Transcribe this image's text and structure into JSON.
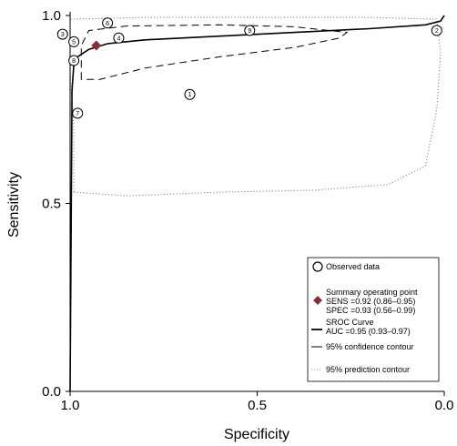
{
  "chart_data": {
    "type": "scatter",
    "xlabel": "Specificity",
    "ylabel": "Sensitivity",
    "xlim": [
      1.0,
      0.0
    ],
    "ylim": [
      0.0,
      1.0
    ],
    "x_ticks": [
      "1.0",
      "0.5",
      "0.0"
    ],
    "y_ticks": [
      "0.0",
      "0.5",
      "1.0"
    ],
    "grid": false,
    "legend_placement": "bottom-right",
    "observed_data": [
      {
        "label": "1",
        "specificity": 0.68,
        "sensitivity": 0.79
      },
      {
        "label": "2",
        "specificity": 0.02,
        "sensitivity": 0.96
      },
      {
        "label": "3",
        "specificity": 1.02,
        "sensitivity": 0.95
      },
      {
        "label": "4",
        "specificity": 0.87,
        "sensitivity": 0.94
      },
      {
        "label": "5",
        "specificity": 0.99,
        "sensitivity": 0.93
      },
      {
        "label": "6",
        "specificity": 0.9,
        "sensitivity": 0.98
      },
      {
        "label": "7",
        "specificity": 0.98,
        "sensitivity": 0.74
      },
      {
        "label": "8",
        "specificity": 0.99,
        "sensitivity": 0.88
      },
      {
        "label": "9",
        "specificity": 0.52,
        "sensitivity": 0.96
      }
    ],
    "summary_point": {
      "specificity": 0.93,
      "sensitivity": 0.92
    },
    "sroc_curve": [
      {
        "specificity": 1.0,
        "sensitivity": 0.0
      },
      {
        "specificity": 0.995,
        "sensitivity": 0.8
      },
      {
        "specificity": 0.99,
        "sensitivity": 0.87
      },
      {
        "specificity": 0.98,
        "sensitivity": 0.89
      },
      {
        "specificity": 0.95,
        "sensitivity": 0.91
      },
      {
        "specificity": 0.9,
        "sensitivity": 0.925
      },
      {
        "specificity": 0.8,
        "sensitivity": 0.935
      },
      {
        "specificity": 0.6,
        "sensitivity": 0.945
      },
      {
        "specificity": 0.4,
        "sensitivity": 0.955
      },
      {
        "specificity": 0.2,
        "sensitivity": 0.965
      },
      {
        "specificity": 0.05,
        "sensitivity": 0.975
      },
      {
        "specificity": 0.01,
        "sensitivity": 0.985
      },
      {
        "specificity": 0.0,
        "sensitivity": 1.0
      }
    ],
    "confidence_contour": [
      {
        "specificity": 0.97,
        "sensitivity": 0.83
      },
      {
        "specificity": 0.97,
        "sensitivity": 0.92
      },
      {
        "specificity": 0.95,
        "sensitivity": 0.96
      },
      {
        "specificity": 0.85,
        "sensitivity": 0.972
      },
      {
        "specificity": 0.6,
        "sensitivity": 0.975
      },
      {
        "specificity": 0.4,
        "sensitivity": 0.97
      },
      {
        "specificity": 0.26,
        "sensitivity": 0.955
      },
      {
        "specificity": 0.28,
        "sensitivity": 0.94
      },
      {
        "specificity": 0.4,
        "sensitivity": 0.915
      },
      {
        "specificity": 0.6,
        "sensitivity": 0.89
      },
      {
        "specificity": 0.8,
        "sensitivity": 0.86
      },
      {
        "specificity": 0.92,
        "sensitivity": 0.83
      },
      {
        "specificity": 0.97,
        "sensitivity": 0.83
      }
    ],
    "prediction_contour": [
      {
        "specificity": 0.99,
        "sensitivity": 0.53
      },
      {
        "specificity": 0.99,
        "sensitivity": 0.7
      },
      {
        "specificity": 1.0,
        "sensitivity": 0.85
      },
      {
        "specificity": 1.0,
        "sensitivity": 0.99
      },
      {
        "specificity": 0.8,
        "sensitivity": 0.995
      },
      {
        "specificity": 0.5,
        "sensitivity": 0.995
      },
      {
        "specificity": 0.2,
        "sensitivity": 0.995
      },
      {
        "specificity": 0.02,
        "sensitivity": 0.99
      },
      {
        "specificity": 0.01,
        "sensitivity": 0.9
      },
      {
        "specificity": 0.02,
        "sensitivity": 0.75
      },
      {
        "specificity": 0.05,
        "sensitivity": 0.6
      },
      {
        "specificity": 0.15,
        "sensitivity": 0.55
      },
      {
        "specificity": 0.35,
        "sensitivity": 0.535
      },
      {
        "specificity": 0.6,
        "sensitivity": 0.53
      },
      {
        "specificity": 0.85,
        "sensitivity": 0.52
      },
      {
        "specificity": 0.99,
        "sensitivity": 0.53
      }
    ],
    "legend": [
      {
        "key": "observed",
        "lines": [
          "Observed data"
        ]
      },
      {
        "key": "summary",
        "lines": [
          "Summary operating point",
          "SENS =0.92 (0.86–0.95)",
          "SPEC =0.93 (0.56–0.99)"
        ]
      },
      {
        "key": "sroc",
        "lines": [
          "SROC Curve",
          "AUC =0.95 (0.93–0.97)"
        ]
      },
      {
        "key": "confidence",
        "lines": [
          "95% confidence contour"
        ]
      },
      {
        "key": "prediction",
        "lines": [
          "95% prediction contour"
        ]
      }
    ],
    "colors": {
      "summary_point": "#8b2e3a",
      "curve": "#000000",
      "prediction_contour": "#888888",
      "axis": "#000000"
    }
  }
}
